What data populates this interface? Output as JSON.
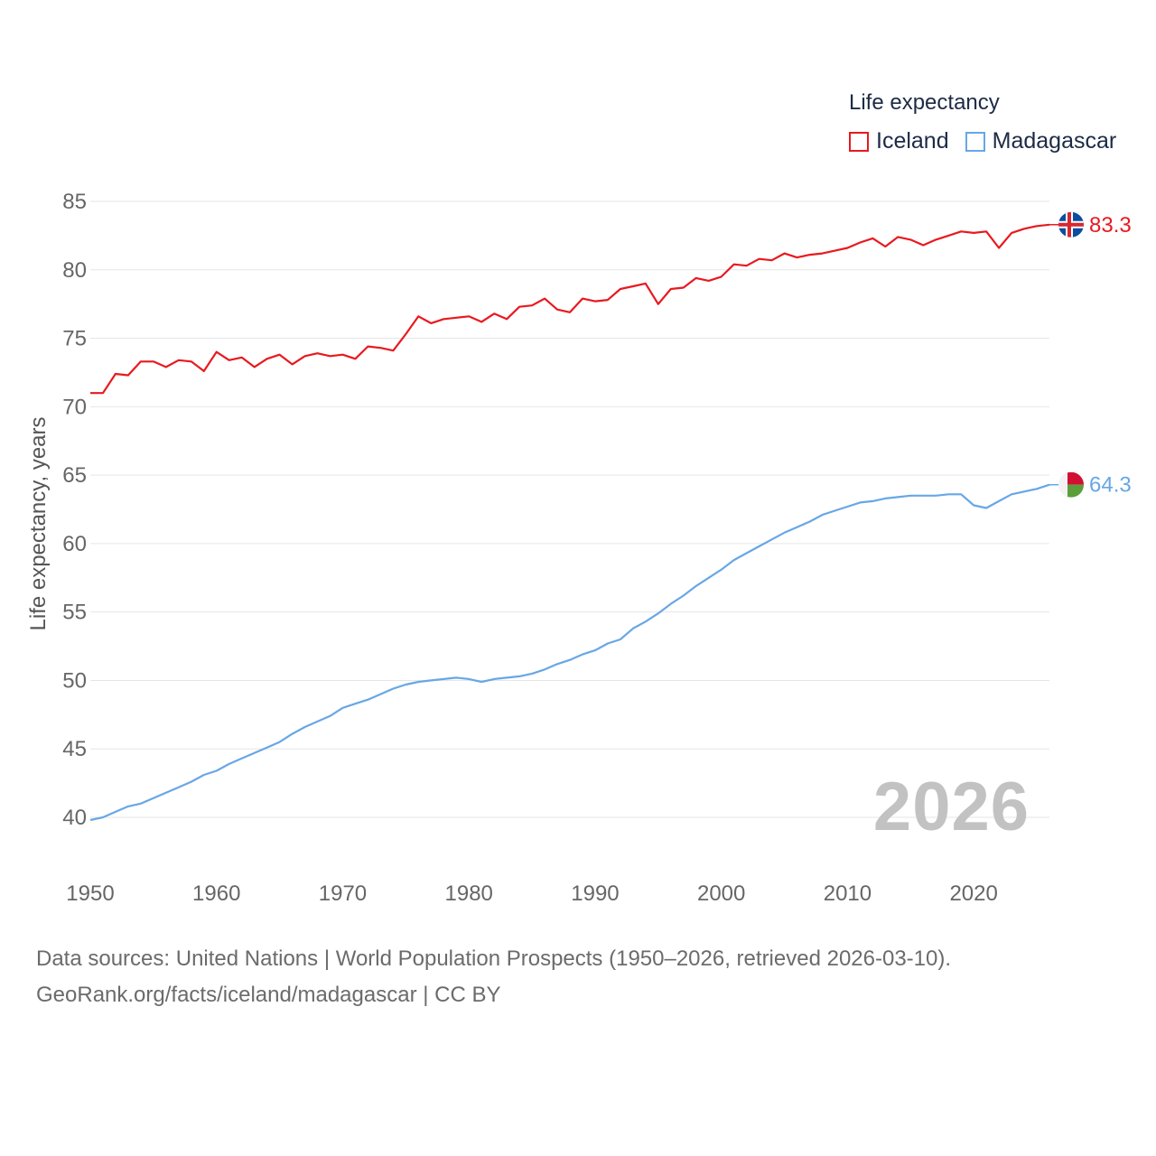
{
  "legend": {
    "title": "Life expectancy",
    "items": [
      {
        "name": "Iceland",
        "color": "#e8191f"
      },
      {
        "name": "Madagascar",
        "color": "#68a7e5"
      }
    ]
  },
  "year_label": "2026",
  "footer": {
    "line1": "Data sources: United Nations | World Population Prospects (1950–2026, retrieved 2026-03-10).",
    "line2": "GeoRank.org/facts/iceland/madagascar | CC BY"
  },
  "chart_data": {
    "type": "line",
    "title": "Life expectancy",
    "xlabel": "",
    "ylabel": "Life expectancy, years",
    "xlim": [
      1950,
      2026
    ],
    "ylim": [
      38,
      86
    ],
    "x_ticks": [
      1950,
      1960,
      1970,
      1980,
      1990,
      2000,
      2010,
      2020
    ],
    "y_ticks": [
      40,
      45,
      50,
      55,
      60,
      65,
      70,
      75,
      80,
      85
    ],
    "grid": true,
    "legend_position": "top-right",
    "x": [
      1950,
      1951,
      1952,
      1953,
      1954,
      1955,
      1956,
      1957,
      1958,
      1959,
      1960,
      1961,
      1962,
      1963,
      1964,
      1965,
      1966,
      1967,
      1968,
      1969,
      1970,
      1971,
      1972,
      1973,
      1974,
      1975,
      1976,
      1977,
      1978,
      1979,
      1980,
      1981,
      1982,
      1983,
      1984,
      1985,
      1986,
      1987,
      1988,
      1989,
      1990,
      1991,
      1992,
      1993,
      1994,
      1995,
      1996,
      1997,
      1998,
      1999,
      2000,
      2001,
      2002,
      2003,
      2004,
      2005,
      2006,
      2007,
      2008,
      2009,
      2010,
      2011,
      2012,
      2013,
      2014,
      2015,
      2016,
      2017,
      2018,
      2019,
      2020,
      2021,
      2022,
      2023,
      2024,
      2025,
      2026
    ],
    "series": [
      {
        "name": "Iceland",
        "color": "#e8191f",
        "end_label": "83.3",
        "values": [
          71.0,
          71.0,
          72.4,
          72.3,
          73.3,
          73.3,
          72.9,
          73.4,
          73.3,
          72.6,
          74.0,
          73.4,
          73.6,
          72.9,
          73.5,
          73.8,
          73.1,
          73.7,
          73.9,
          73.7,
          73.8,
          73.5,
          74.4,
          74.3,
          74.1,
          75.3,
          76.6,
          76.1,
          76.4,
          76.5,
          76.6,
          76.2,
          76.8,
          76.4,
          77.3,
          77.4,
          77.9,
          77.1,
          76.9,
          77.9,
          77.7,
          77.8,
          78.6,
          78.8,
          79.0,
          77.5,
          78.6,
          78.7,
          79.4,
          79.2,
          79.5,
          80.4,
          80.3,
          80.8,
          80.7,
          81.2,
          80.9,
          81.1,
          81.2,
          81.4,
          81.6,
          82.0,
          82.3,
          81.7,
          82.4,
          82.2,
          81.8,
          82.2,
          82.5,
          82.8,
          82.7,
          82.8,
          81.6,
          82.7,
          83.0,
          83.2,
          83.3
        ]
      },
      {
        "name": "Madagascar",
        "color": "#68a7e5",
        "end_label": "64.3",
        "values": [
          39.8,
          40.0,
          40.4,
          40.8,
          41.0,
          41.4,
          41.8,
          42.2,
          42.6,
          43.1,
          43.4,
          43.9,
          44.3,
          44.7,
          45.1,
          45.5,
          46.1,
          46.6,
          47.0,
          47.4,
          48.0,
          48.3,
          48.6,
          49.0,
          49.4,
          49.7,
          49.9,
          50.0,
          50.1,
          50.2,
          50.1,
          49.9,
          50.1,
          50.2,
          50.3,
          50.5,
          50.8,
          51.2,
          51.5,
          51.9,
          52.2,
          52.7,
          53.0,
          53.8,
          54.3,
          54.9,
          55.6,
          56.2,
          56.9,
          57.5,
          58.1,
          58.8,
          59.3,
          59.8,
          60.3,
          60.8,
          61.2,
          61.6,
          62.1,
          62.4,
          62.7,
          63.0,
          63.1,
          63.3,
          63.4,
          63.5,
          63.5,
          63.5,
          63.6,
          63.6,
          62.8,
          62.6,
          63.1,
          63.6,
          63.8,
          64.0,
          64.3
        ]
      }
    ]
  }
}
